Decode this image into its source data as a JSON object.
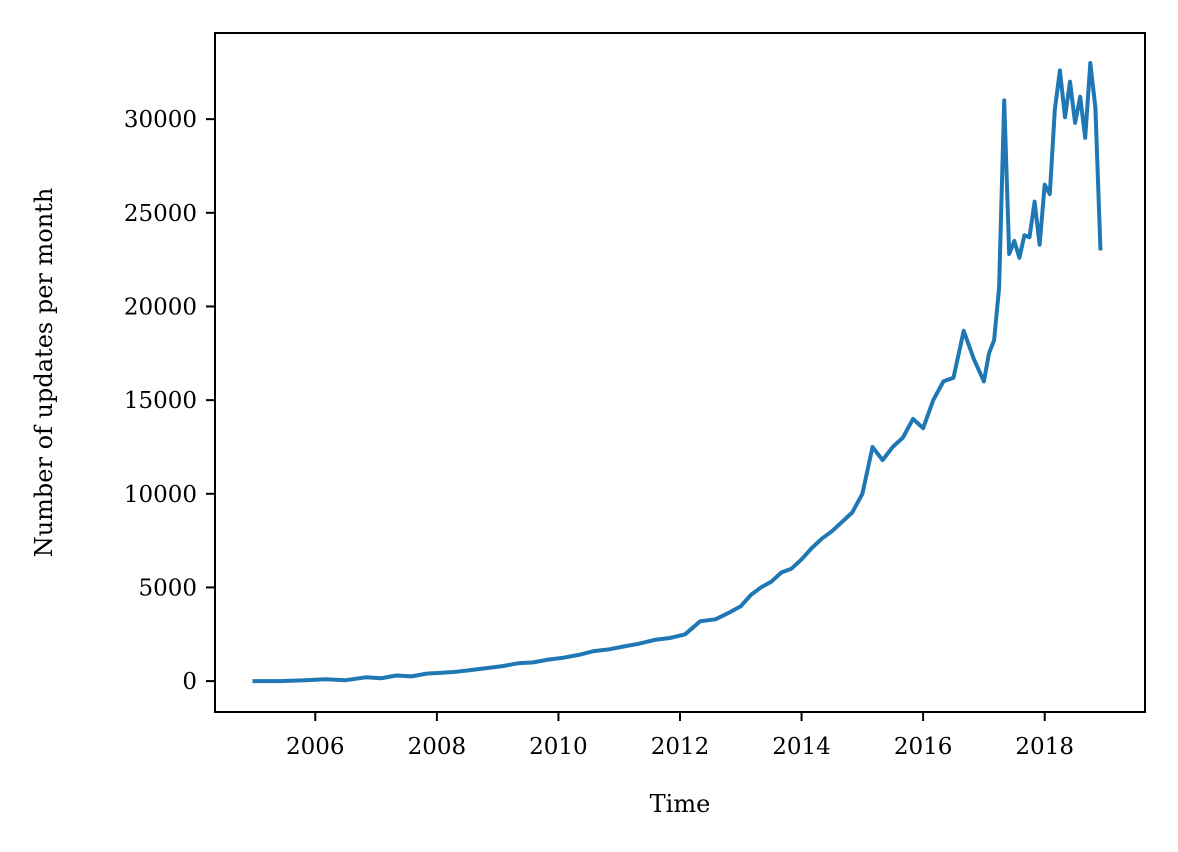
{
  "chart_data": {
    "type": "line",
    "title": "",
    "xlabel": "Time",
    "ylabel": "Number of updates per month",
    "xlim": [
      2004.35,
      2019.65
    ],
    "ylim": [
      -1650,
      34600
    ],
    "x_ticks": [
      2006,
      2008,
      2010,
      2012,
      2014,
      2016,
      2018
    ],
    "x_tick_labels": [
      "2006",
      "2008",
      "2010",
      "2012",
      "2014",
      "2016",
      "2018"
    ],
    "y_ticks": [
      0,
      5000,
      10000,
      15000,
      20000,
      25000,
      30000
    ],
    "y_tick_labels": [
      "0",
      "5000",
      "10000",
      "15000",
      "20000",
      "25000",
      "30000"
    ],
    "grid": false,
    "legend": "none",
    "series_color": "#1f77b4",
    "series": [
      {
        "x": [
          "2005-01",
          "2005-06",
          "2005-11",
          "2006-03",
          "2006-07",
          "2006-11",
          "2007-02",
          "2007-05",
          "2007-08",
          "2007-11",
          "2008-02",
          "2008-05",
          "2008-08",
          "2008-11",
          "2009-02",
          "2009-05",
          "2009-08",
          "2009-11",
          "2010-02",
          "2010-05",
          "2010-08",
          "2010-11",
          "2011-02",
          "2011-05",
          "2011-08",
          "2011-11",
          "2012-02",
          "2012-05",
          "2012-08",
          "2012-11",
          "2013-01",
          "2013-03",
          "2013-05",
          "2013-07",
          "2013-09",
          "2013-11",
          "2014-01",
          "2014-03",
          "2014-05",
          "2014-07",
          "2014-09",
          "2014-11",
          "2015-01",
          "2015-03",
          "2015-05",
          "2015-07",
          "2015-09",
          "2015-11",
          "2016-01",
          "2016-03",
          "2016-05",
          "2016-07",
          "2016-09",
          "2016-11",
          "2017-01",
          "2017-02",
          "2017-03",
          "2017-04",
          "2017-05",
          "2017-06",
          "2017-07",
          "2017-08",
          "2017-09",
          "2017-10",
          "2017-11",
          "2017-12",
          "2018-01",
          "2018-02",
          "2018-03",
          "2018-04",
          "2018-05",
          "2018-06",
          "2018-07",
          "2018-08",
          "2018-09",
          "2018-10",
          "2018-11",
          "2018-12"
        ],
        "values": [
          0,
          0,
          50,
          100,
          50,
          200,
          150,
          300,
          250,
          400,
          450,
          500,
          600,
          700,
          800,
          950,
          1000,
          1150,
          1250,
          1400,
          1600,
          1700,
          1850,
          2000,
          2200,
          2300,
          2500,
          3200,
          3300,
          3700,
          4000,
          4600,
          5000,
          5300,
          5800,
          6000,
          6500,
          7100,
          7600,
          8000,
          8500,
          9000,
          10000,
          12500,
          11800,
          12500,
          13000,
          14000,
          13500,
          15000,
          16000,
          16200,
          18700,
          17200,
          16000,
          17500,
          18200,
          21000,
          31000,
          22800,
          23500,
          22600,
          23800,
          23700,
          25600,
          23300,
          26500,
          26000,
          30500,
          32600,
          30100,
          32000,
          29800,
          31200,
          29000,
          33000,
          30600,
          23100
        ]
      }
    ]
  }
}
